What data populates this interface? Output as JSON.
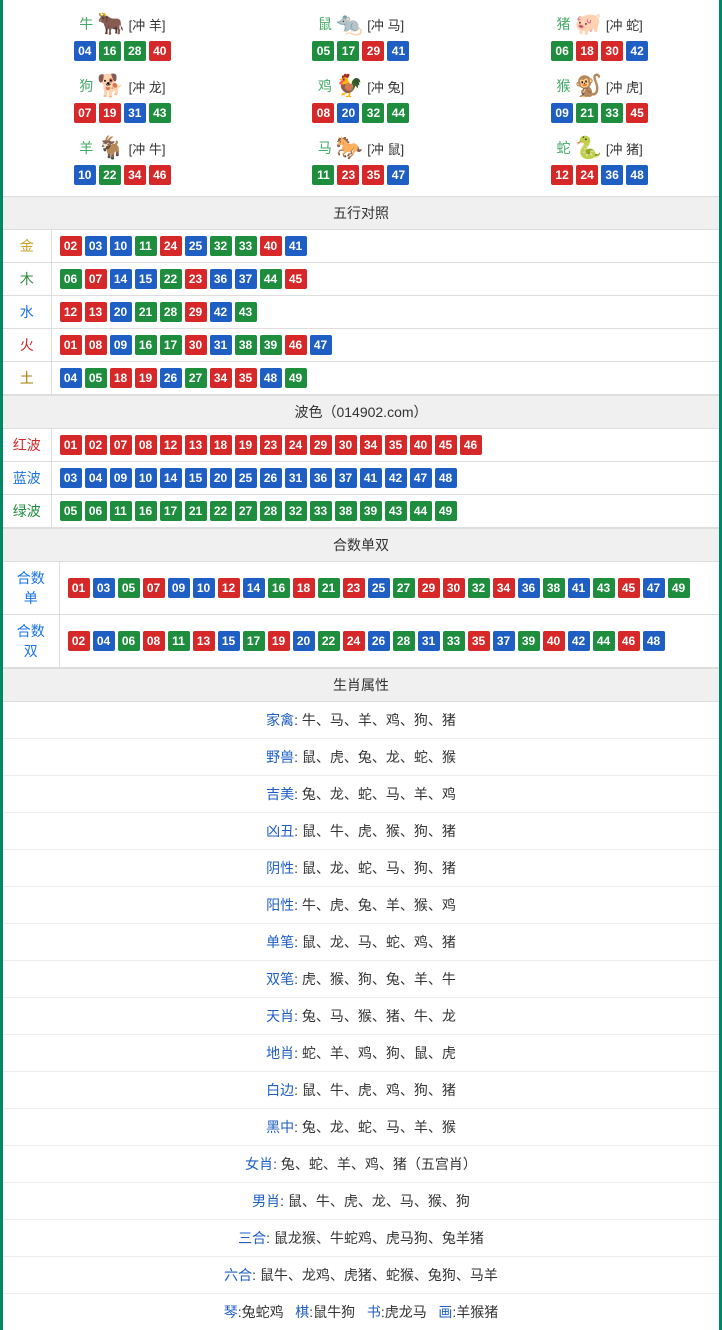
{
  "colors": {
    "border": "#008866",
    "headerBg": "#f0f0f0",
    "cellBorder": "#dddddd",
    "rowBorder": "#eeeeee",
    "text": "#333333",
    "ballRed": "#d62828",
    "ballBlue": "#1f5fc4",
    "ballGreen": "#1e8e3e",
    "lblGold": "#c9a227",
    "lblWood": "#2e8b3b",
    "lblWater": "#1a73e8",
    "lblFire": "#d62828",
    "lblEarth": "#a67c00",
    "lblBlueText": "#1f5fc4",
    "zodiacName": "#44aa66"
  },
  "ballStyle": {
    "width": 22,
    "height": 20,
    "fontSize": 12,
    "radius": 2,
    "gap": 3
  },
  "zodiacs": [
    {
      "name": "牛",
      "conflict": "[冲 羊]",
      "icon": "🐂",
      "iconColor": "#d04040",
      "balls": [
        {
          "n": "04",
          "c": "blue"
        },
        {
          "n": "16",
          "c": "green"
        },
        {
          "n": "28",
          "c": "green"
        },
        {
          "n": "40",
          "c": "red"
        }
      ]
    },
    {
      "name": "鼠",
      "conflict": "[冲 马]",
      "icon": "🐀",
      "iconColor": "#4a9dd8",
      "balls": [
        {
          "n": "05",
          "c": "green"
        },
        {
          "n": "17",
          "c": "green"
        },
        {
          "n": "29",
          "c": "red"
        },
        {
          "n": "41",
          "c": "blue"
        }
      ]
    },
    {
      "name": "猪",
      "conflict": "[冲 蛇]",
      "icon": "🐖",
      "iconColor": "#e88aa8",
      "balls": [
        {
          "n": "06",
          "c": "green"
        },
        {
          "n": "18",
          "c": "red"
        },
        {
          "n": "30",
          "c": "red"
        },
        {
          "n": "42",
          "c": "blue"
        }
      ]
    },
    {
      "name": "狗",
      "conflict": "[冲 龙]",
      "icon": "🐕",
      "iconColor": "#8ab8e0",
      "balls": [
        {
          "n": "07",
          "c": "red"
        },
        {
          "n": "19",
          "c": "red"
        },
        {
          "n": "31",
          "c": "blue"
        },
        {
          "n": "43",
          "c": "green"
        }
      ]
    },
    {
      "name": "鸡",
      "conflict": "[冲 兔]",
      "icon": "🐓",
      "iconColor": "#e8b030",
      "balls": [
        {
          "n": "08",
          "c": "red"
        },
        {
          "n": "20",
          "c": "blue"
        },
        {
          "n": "32",
          "c": "green"
        },
        {
          "n": "44",
          "c": "green"
        }
      ]
    },
    {
      "name": "猴",
      "conflict": "[冲 虎]",
      "icon": "🐒",
      "iconColor": "#d87838",
      "balls": [
        {
          "n": "09",
          "c": "blue"
        },
        {
          "n": "21",
          "c": "green"
        },
        {
          "n": "33",
          "c": "green"
        },
        {
          "n": "45",
          "c": "red"
        }
      ]
    },
    {
      "name": "羊",
      "conflict": "[冲 牛]",
      "icon": "🐐",
      "iconColor": "#d8b848",
      "balls": [
        {
          "n": "10",
          "c": "blue"
        },
        {
          "n": "22",
          "c": "green"
        },
        {
          "n": "34",
          "c": "red"
        },
        {
          "n": "46",
          "c": "red"
        }
      ]
    },
    {
      "name": "马",
      "conflict": "[冲 鼠]",
      "icon": "🐎",
      "iconColor": "#c84838",
      "balls": [
        {
          "n": "11",
          "c": "green"
        },
        {
          "n": "23",
          "c": "red"
        },
        {
          "n": "35",
          "c": "red"
        },
        {
          "n": "47",
          "c": "blue"
        }
      ]
    },
    {
      "name": "蛇",
      "conflict": "[冲 猪]",
      "icon": "🐍",
      "iconColor": "#48a848",
      "balls": [
        {
          "n": "12",
          "c": "red"
        },
        {
          "n": "24",
          "c": "red"
        },
        {
          "n": "36",
          "c": "blue"
        },
        {
          "n": "48",
          "c": "blue"
        }
      ]
    }
  ],
  "wuxingHeader": "五行对照",
  "wuxing": [
    {
      "label": "金",
      "labelClass": "lbl-gold",
      "balls": [
        {
          "n": "02",
          "c": "red"
        },
        {
          "n": "03",
          "c": "blue"
        },
        {
          "n": "10",
          "c": "blue"
        },
        {
          "n": "11",
          "c": "green"
        },
        {
          "n": "24",
          "c": "red"
        },
        {
          "n": "25",
          "c": "blue"
        },
        {
          "n": "32",
          "c": "green"
        },
        {
          "n": "33",
          "c": "green"
        },
        {
          "n": "40",
          "c": "red"
        },
        {
          "n": "41",
          "c": "blue"
        }
      ]
    },
    {
      "label": "木",
      "labelClass": "lbl-wood",
      "balls": [
        {
          "n": "06",
          "c": "green"
        },
        {
          "n": "07",
          "c": "red"
        },
        {
          "n": "14",
          "c": "blue"
        },
        {
          "n": "15",
          "c": "blue"
        },
        {
          "n": "22",
          "c": "green"
        },
        {
          "n": "23",
          "c": "red"
        },
        {
          "n": "36",
          "c": "blue"
        },
        {
          "n": "37",
          "c": "blue"
        },
        {
          "n": "44",
          "c": "green"
        },
        {
          "n": "45",
          "c": "red"
        }
      ]
    },
    {
      "label": "水",
      "labelClass": "lbl-water",
      "balls": [
        {
          "n": "12",
          "c": "red"
        },
        {
          "n": "13",
          "c": "red"
        },
        {
          "n": "20",
          "c": "blue"
        },
        {
          "n": "21",
          "c": "green"
        },
        {
          "n": "28",
          "c": "green"
        },
        {
          "n": "29",
          "c": "red"
        },
        {
          "n": "42",
          "c": "blue"
        },
        {
          "n": "43",
          "c": "green"
        }
      ]
    },
    {
      "label": "火",
      "labelClass": "lbl-fire",
      "balls": [
        {
          "n": "01",
          "c": "red"
        },
        {
          "n": "08",
          "c": "red"
        },
        {
          "n": "09",
          "c": "blue"
        },
        {
          "n": "16",
          "c": "green"
        },
        {
          "n": "17",
          "c": "green"
        },
        {
          "n": "30",
          "c": "red"
        },
        {
          "n": "31",
          "c": "blue"
        },
        {
          "n": "38",
          "c": "green"
        },
        {
          "n": "39",
          "c": "green"
        },
        {
          "n": "46",
          "c": "red"
        },
        {
          "n": "47",
          "c": "blue"
        }
      ]
    },
    {
      "label": "土",
      "labelClass": "lbl-earth",
      "balls": [
        {
          "n": "04",
          "c": "blue"
        },
        {
          "n": "05",
          "c": "green"
        },
        {
          "n": "18",
          "c": "red"
        },
        {
          "n": "19",
          "c": "red"
        },
        {
          "n": "26",
          "c": "blue"
        },
        {
          "n": "27",
          "c": "green"
        },
        {
          "n": "34",
          "c": "red"
        },
        {
          "n": "35",
          "c": "red"
        },
        {
          "n": "48",
          "c": "blue"
        },
        {
          "n": "49",
          "c": "green"
        }
      ]
    }
  ],
  "boseHeader": "波色（014902.com）",
  "bose": [
    {
      "label": "红波",
      "labelClass": "lbl-red",
      "balls": [
        {
          "n": "01",
          "c": "red"
        },
        {
          "n": "02",
          "c": "red"
        },
        {
          "n": "07",
          "c": "red"
        },
        {
          "n": "08",
          "c": "red"
        },
        {
          "n": "12",
          "c": "red"
        },
        {
          "n": "13",
          "c": "red"
        },
        {
          "n": "18",
          "c": "red"
        },
        {
          "n": "19",
          "c": "red"
        },
        {
          "n": "23",
          "c": "red"
        },
        {
          "n": "24",
          "c": "red"
        },
        {
          "n": "29",
          "c": "red"
        },
        {
          "n": "30",
          "c": "red"
        },
        {
          "n": "34",
          "c": "red"
        },
        {
          "n": "35",
          "c": "red"
        },
        {
          "n": "40",
          "c": "red"
        },
        {
          "n": "45",
          "c": "red"
        },
        {
          "n": "46",
          "c": "red"
        }
      ]
    },
    {
      "label": "蓝波",
      "labelClass": "lbl-water",
      "balls": [
        {
          "n": "03",
          "c": "blue"
        },
        {
          "n": "04",
          "c": "blue"
        },
        {
          "n": "09",
          "c": "blue"
        },
        {
          "n": "10",
          "c": "blue"
        },
        {
          "n": "14",
          "c": "blue"
        },
        {
          "n": "15",
          "c": "blue"
        },
        {
          "n": "20",
          "c": "blue"
        },
        {
          "n": "25",
          "c": "blue"
        },
        {
          "n": "26",
          "c": "blue"
        },
        {
          "n": "31",
          "c": "blue"
        },
        {
          "n": "36",
          "c": "blue"
        },
        {
          "n": "37",
          "c": "blue"
        },
        {
          "n": "41",
          "c": "blue"
        },
        {
          "n": "42",
          "c": "blue"
        },
        {
          "n": "47",
          "c": "blue"
        },
        {
          "n": "48",
          "c": "blue"
        }
      ]
    },
    {
      "label": "绿波",
      "labelClass": "lbl-green",
      "balls": [
        {
          "n": "05",
          "c": "green"
        },
        {
          "n": "06",
          "c": "green"
        },
        {
          "n": "11",
          "c": "green"
        },
        {
          "n": "16",
          "c": "green"
        },
        {
          "n": "17",
          "c": "green"
        },
        {
          "n": "21",
          "c": "green"
        },
        {
          "n": "22",
          "c": "green"
        },
        {
          "n": "27",
          "c": "green"
        },
        {
          "n": "28",
          "c": "green"
        },
        {
          "n": "32",
          "c": "green"
        },
        {
          "n": "33",
          "c": "green"
        },
        {
          "n": "38",
          "c": "green"
        },
        {
          "n": "39",
          "c": "green"
        },
        {
          "n": "43",
          "c": "green"
        },
        {
          "n": "44",
          "c": "green"
        },
        {
          "n": "49",
          "c": "green"
        }
      ]
    }
  ],
  "heshuHeader": "合数单双",
  "heshu": [
    {
      "label": "合数单",
      "labelClass": "lbl-water",
      "balls": [
        {
          "n": "01",
          "c": "red"
        },
        {
          "n": "03",
          "c": "blue"
        },
        {
          "n": "05",
          "c": "green"
        },
        {
          "n": "07",
          "c": "red"
        },
        {
          "n": "09",
          "c": "blue"
        },
        {
          "n": "10",
          "c": "blue"
        },
        {
          "n": "12",
          "c": "red"
        },
        {
          "n": "14",
          "c": "blue"
        },
        {
          "n": "16",
          "c": "green"
        },
        {
          "n": "18",
          "c": "red"
        },
        {
          "n": "21",
          "c": "green"
        },
        {
          "n": "23",
          "c": "red"
        },
        {
          "n": "25",
          "c": "blue"
        },
        {
          "n": "27",
          "c": "green"
        },
        {
          "n": "29",
          "c": "red"
        },
        {
          "n": "30",
          "c": "red"
        },
        {
          "n": "32",
          "c": "green"
        },
        {
          "n": "34",
          "c": "red"
        },
        {
          "n": "36",
          "c": "blue"
        },
        {
          "n": "38",
          "c": "green"
        },
        {
          "n": "41",
          "c": "blue"
        },
        {
          "n": "43",
          "c": "green"
        },
        {
          "n": "45",
          "c": "red"
        },
        {
          "n": "47",
          "c": "blue"
        },
        {
          "n": "49",
          "c": "green"
        }
      ]
    },
    {
      "label": "合数双",
      "labelClass": "lbl-water",
      "balls": [
        {
          "n": "02",
          "c": "red"
        },
        {
          "n": "04",
          "c": "blue"
        },
        {
          "n": "06",
          "c": "green"
        },
        {
          "n": "08",
          "c": "red"
        },
        {
          "n": "11",
          "c": "green"
        },
        {
          "n": "13",
          "c": "red"
        },
        {
          "n": "15",
          "c": "blue"
        },
        {
          "n": "17",
          "c": "green"
        },
        {
          "n": "19",
          "c": "red"
        },
        {
          "n": "20",
          "c": "blue"
        },
        {
          "n": "22",
          "c": "green"
        },
        {
          "n": "24",
          "c": "red"
        },
        {
          "n": "26",
          "c": "blue"
        },
        {
          "n": "28",
          "c": "green"
        },
        {
          "n": "31",
          "c": "blue"
        },
        {
          "n": "33",
          "c": "green"
        },
        {
          "n": "35",
          "c": "red"
        },
        {
          "n": "37",
          "c": "blue"
        },
        {
          "n": "39",
          "c": "green"
        },
        {
          "n": "40",
          "c": "red"
        },
        {
          "n": "42",
          "c": "blue"
        },
        {
          "n": "44",
          "c": "green"
        },
        {
          "n": "46",
          "c": "red"
        },
        {
          "n": "48",
          "c": "blue"
        }
      ]
    }
  ],
  "shuxingHeader": "生肖属性",
  "shuxing": [
    {
      "label": "家禽",
      "values": "牛、马、羊、鸡、狗、猪"
    },
    {
      "label": "野兽",
      "values": "鼠、虎、兔、龙、蛇、猴"
    },
    {
      "label": "吉美",
      "values": "兔、龙、蛇、马、羊、鸡"
    },
    {
      "label": "凶丑",
      "values": "鼠、牛、虎、猴、狗、猪"
    },
    {
      "label": "阴性",
      "values": "鼠、龙、蛇、马、狗、猪"
    },
    {
      "label": "阳性",
      "values": "牛、虎、兔、羊、猴、鸡"
    },
    {
      "label": "单笔",
      "values": "鼠、龙、马、蛇、鸡、猪"
    },
    {
      "label": "双笔",
      "values": "虎、猴、狗、兔、羊、牛"
    },
    {
      "label": "天肖",
      "values": "兔、马、猴、猪、牛、龙"
    },
    {
      "label": "地肖",
      "values": "蛇、羊、鸡、狗、鼠、虎"
    },
    {
      "label": "白边",
      "values": "鼠、牛、虎、鸡、狗、猪"
    },
    {
      "label": "黑中",
      "values": "兔、龙、蛇、马、羊、猴"
    },
    {
      "label": "女肖",
      "values": "兔、蛇、羊、鸡、猪（五宫肖）"
    },
    {
      "label": "男肖",
      "values": "鼠、牛、虎、龙、马、猴、狗"
    },
    {
      "label": "三合",
      "values": "鼠龙猴、牛蛇鸡、虎马狗、兔羊猪"
    },
    {
      "label": "六合",
      "values": "鼠牛、龙鸡、虎猪、蛇猴、兔狗、马羊"
    }
  ],
  "footerParts": [
    {
      "label": "琴",
      "values": "兔蛇鸡"
    },
    {
      "label": "棋",
      "values": "鼠牛狗"
    },
    {
      "label": "书",
      "values": "虎龙马"
    },
    {
      "label": "画",
      "values": "羊猴猪"
    }
  ]
}
